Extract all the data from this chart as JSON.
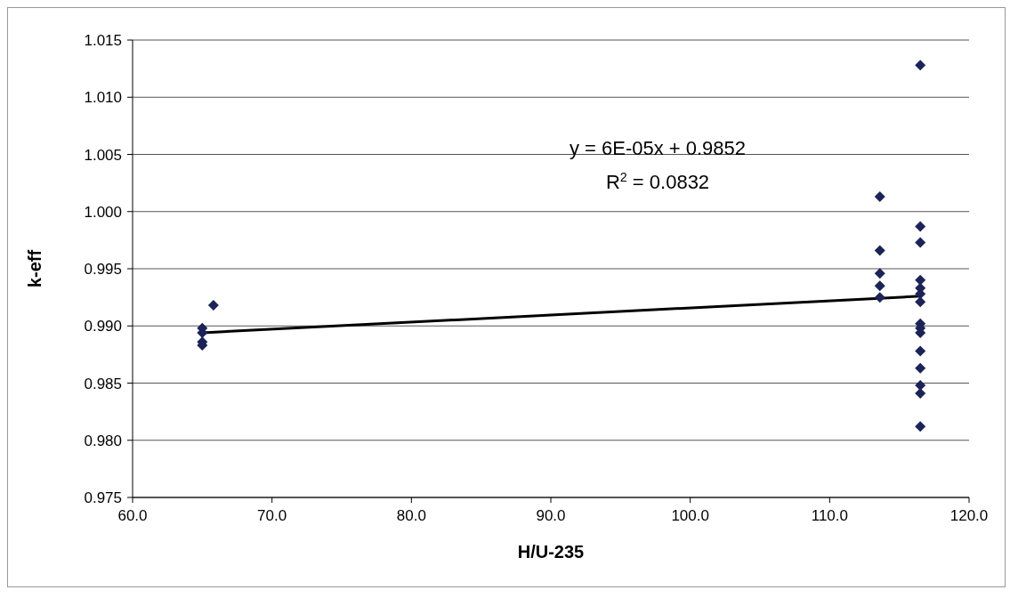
{
  "chart_data": {
    "type": "scatter",
    "xlabel": "H/U-235",
    "ylabel": "k-eff",
    "xlim": [
      60,
      120
    ],
    "xticks": [
      {
        "value": 60,
        "label": "60.0"
      },
      {
        "value": 70,
        "label": "70.0"
      },
      {
        "value": 80,
        "label": "80.0"
      },
      {
        "value": 90,
        "label": "90.0"
      },
      {
        "value": 100,
        "label": "100.0"
      },
      {
        "value": 110,
        "label": "110.0"
      },
      {
        "value": 120,
        "label": "120.0"
      }
    ],
    "ylim": [
      0.975,
      1.015
    ],
    "yticks": [
      {
        "value": 0.975,
        "label": "0.975"
      },
      {
        "value": 0.98,
        "label": "0.980"
      },
      {
        "value": 0.985,
        "label": "0.985"
      },
      {
        "value": 0.99,
        "label": "0.990"
      },
      {
        "value": 0.995,
        "label": "0.995"
      },
      {
        "value": 1,
        "label": "1.000"
      },
      {
        "value": 1.005,
        "label": "1.005"
      },
      {
        "value": 1.01,
        "label": "1.010"
      },
      {
        "value": 1.015,
        "label": "1.015"
      }
    ],
    "grid": "y",
    "legend": false,
    "series": [
      {
        "marker": "diamond",
        "color": "#1c2357",
        "x": [
          65,
          65,
          65,
          65,
          65.8,
          113.6,
          113.6,
          113.6,
          113.6,
          113.6,
          116.5,
          116.5,
          116.5,
          116.5,
          116.5,
          116.5,
          116.5,
          116.5,
          116.5,
          116.5,
          116.5,
          116.5,
          116.5,
          116.5,
          116.5
        ],
        "values": [
          0.9898,
          0.9894,
          0.9886,
          0.9883,
          0.9918,
          1.0013,
          0.9966,
          0.9946,
          0.9935,
          0.9925,
          1.0128,
          0.9987,
          0.9973,
          0.994,
          0.9933,
          0.9928,
          0.9921,
          0.9902,
          0.9898,
          0.9894,
          0.9878,
          0.9863,
          0.9848,
          0.9841,
          0.9812
        ]
      },
      {
        "type": "line",
        "color": "#000000",
        "x": [
          65,
          116.5
        ],
        "values": [
          0.9894,
          0.9926
        ]
      }
    ],
    "annotations": [
      "y = 6E-05x + 0.9852",
      "R$^{2}$ = 0.0832"
    ]
  }
}
